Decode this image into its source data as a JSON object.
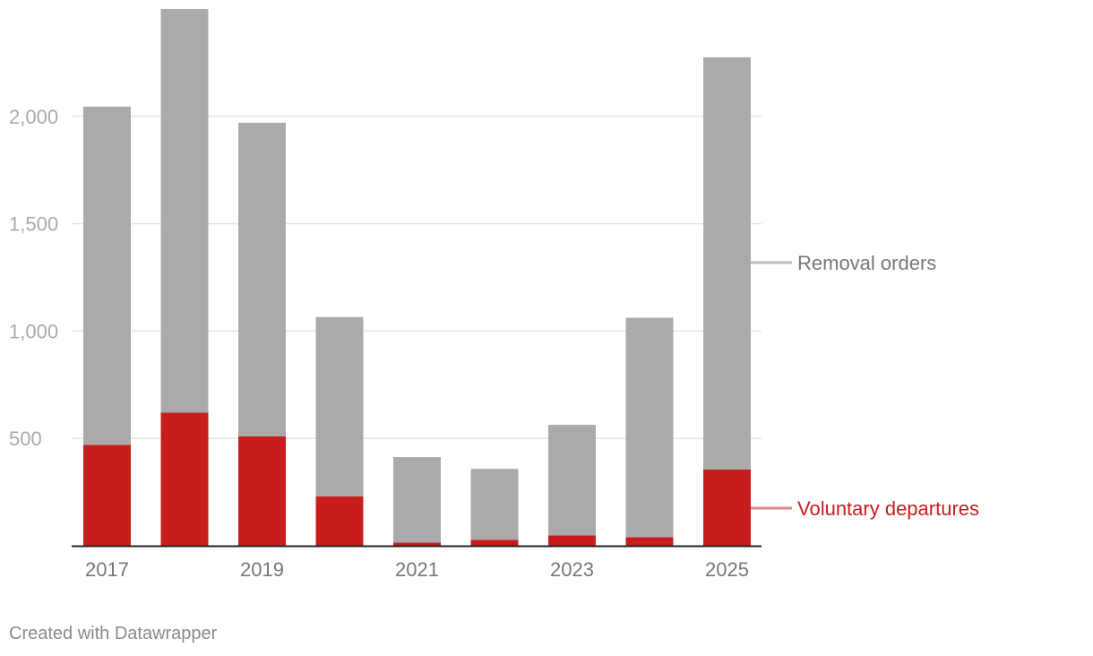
{
  "chart_data": {
    "type": "bar",
    "stacked": true,
    "categories": [
      "2017",
      "2018",
      "2019",
      "2020",
      "2021",
      "2022",
      "2023",
      "2024",
      "2025"
    ],
    "x_tick_labels": [
      "2017",
      "",
      "2019",
      "",
      "2021",
      "",
      "2023",
      "",
      "2025"
    ],
    "series": [
      {
        "name": "Voluntary departures",
        "color": "#c71e1d",
        "values": [
          470,
          620,
          510,
          230,
          15,
          28,
          48,
          40,
          355
        ]
      },
      {
        "name": "Removal orders",
        "color": "#aaaaaa",
        "values": [
          1575,
          1880,
          1460,
          835,
          398,
          330,
          515,
          1022,
          1920
        ]
      }
    ],
    "y_ticks": [
      500,
      1000,
      1500,
      2000
    ],
    "y_tick_labels": [
      "500",
      "1,000",
      "1,500",
      "2,000"
    ],
    "ylim": [
      0,
      2500
    ],
    "title": "",
    "xlabel": "",
    "ylabel": "",
    "legend": {
      "placement": "right, inline labels",
      "removal_label": "Removal orders",
      "voluntary_label": "Voluntary departures",
      "removal_color": "#777777",
      "voluntary_color": "#c71e1d",
      "removal_line_color": "#bbbbbb",
      "voluntary_line_color": "#e08a8a"
    }
  },
  "footer": {
    "credit": "Created with Datawrapper"
  }
}
